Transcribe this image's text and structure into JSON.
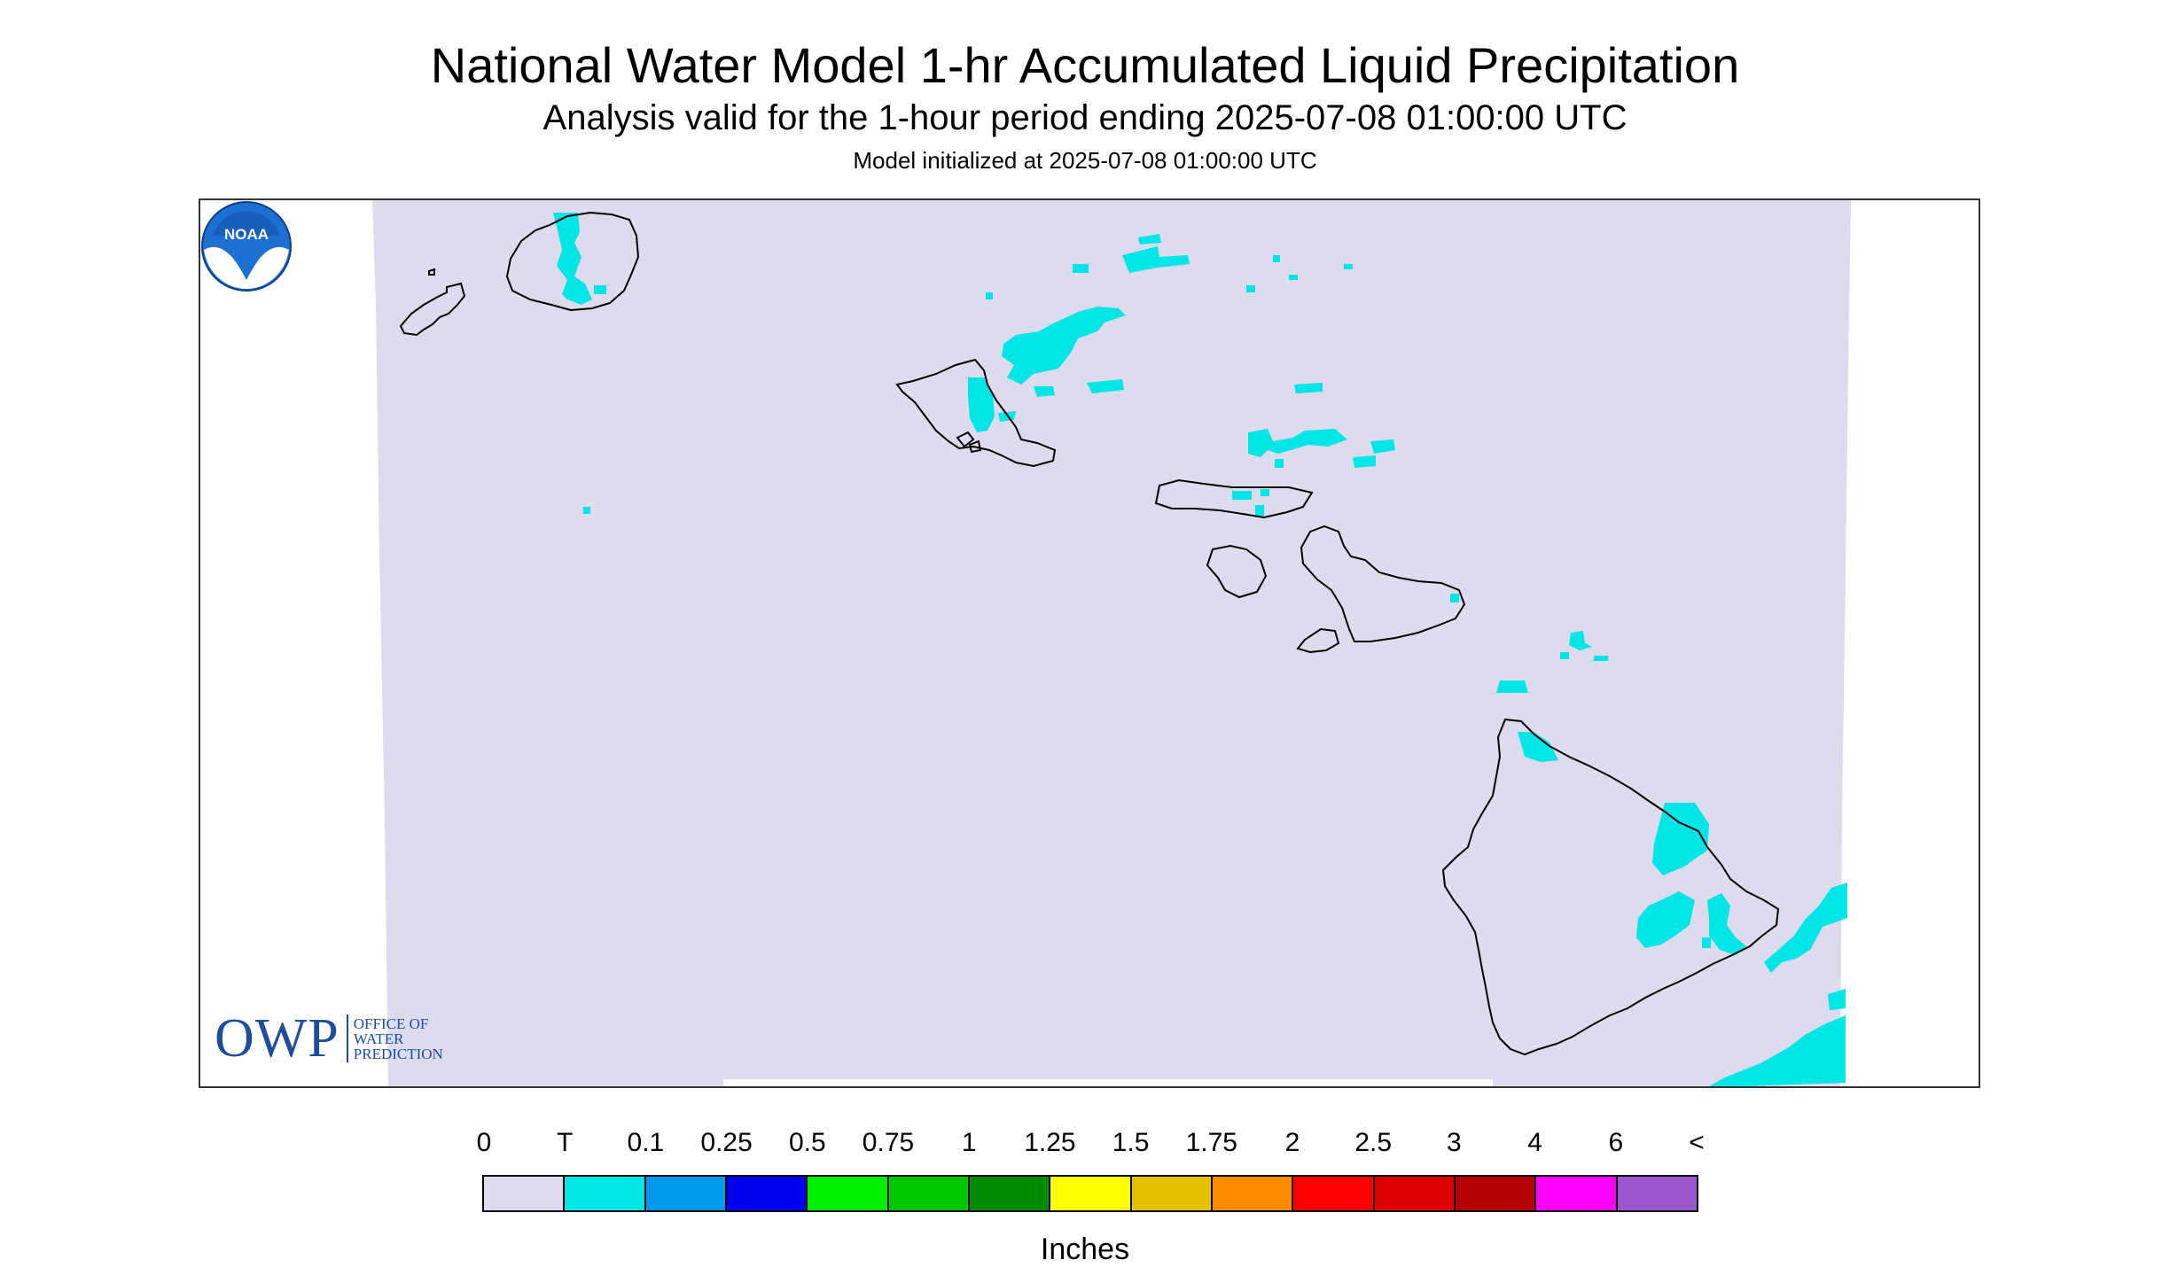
{
  "header": {
    "title": "National Water Model 1-hr Accumulated Liquid Precipitation",
    "subtitle": "Analysis valid for the 1-hour period ending 2025-07-08 01:00:00 UTC",
    "init": "Model initialized at 2025-07-08 01:00:00 UTC"
  },
  "logos": {
    "owp_letters": "OWP",
    "owp_line1": "OFFICE OF",
    "owp_line2": "WATER",
    "owp_line3": "PREDICTION",
    "noaa": "NOAA"
  },
  "legend": {
    "unit": "Inches",
    "labels": [
      "0",
      "T",
      "0.1",
      "0.25",
      "0.5",
      "0.75",
      "1",
      "1.25",
      "1.5",
      "1.75",
      "2",
      "2.5",
      "3",
      "4",
      "6",
      "<"
    ],
    "colors": [
      "#dcdcee",
      "#00e5e5",
      "#0099ee",
      "#0000ee",
      "#00ee00",
      "#00c800",
      "#008c00",
      "#ffff00",
      "#e5c000",
      "#ff8c00",
      "#ff0000",
      "#dc0000",
      "#b40000",
      "#ff00ff",
      "#9955cc"
    ]
  },
  "map": {
    "background_color": "#dcdcee",
    "outline_color": "#000000"
  }
}
